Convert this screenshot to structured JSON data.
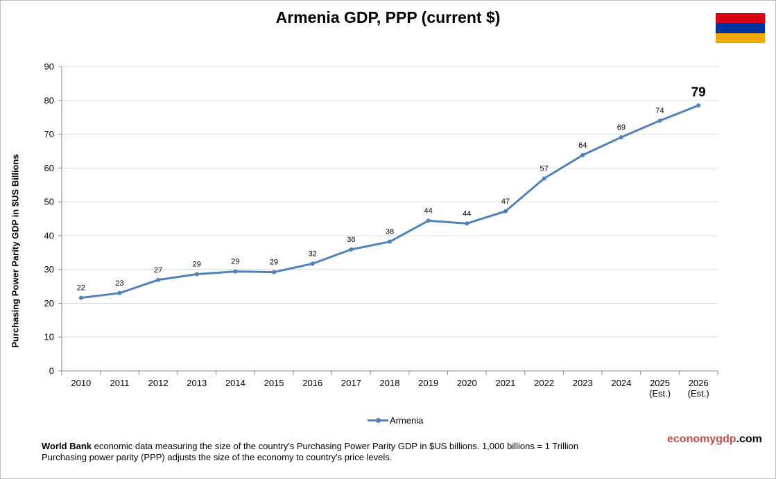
{
  "title": "Armenia  GDP, PPP (current $)",
  "flag_colors": [
    "#d90012",
    "#0033a0",
    "#f2a800"
  ],
  "brand": {
    "part1": "economygdp",
    "part2": ".com"
  },
  "footer": {
    "source": "World Bank",
    "line1_rest": " economic data measuring the size of the country's Purchasing Power Parity GDP in $US billions. 1,000 billions = 1 Trillion",
    "line2": "Purchasing power parity (PPP) adjusts the size of the economy to country's price levels."
  },
  "chart_data": {
    "type": "line",
    "ylabel": "Purchasing Power Parity GDP in $US Billions",
    "xlabel": "",
    "ylim": [
      0,
      90
    ],
    "yticks": [
      0,
      10,
      20,
      30,
      40,
      50,
      60,
      70,
      80,
      90
    ],
    "grid": true,
    "legend_position": "bottom",
    "color": "#4f81bd",
    "categories": [
      [
        "2010"
      ],
      [
        "2011"
      ],
      [
        "2012"
      ],
      [
        "2013"
      ],
      [
        "2014"
      ],
      [
        "2015"
      ],
      [
        "2016"
      ],
      [
        "2017"
      ],
      [
        "2018"
      ],
      [
        "2019"
      ],
      [
        "2020"
      ],
      [
        "2021"
      ],
      [
        "2022"
      ],
      [
        "2023"
      ],
      [
        "2024"
      ],
      [
        "2025",
        "(Est.)"
      ],
      [
        "2026",
        "(Est.)"
      ]
    ],
    "series": [
      {
        "name": "Armenia",
        "values": [
          21.6,
          23.0,
          26.9,
          28.6,
          29.4,
          29.2,
          31.7,
          35.9,
          38.2,
          44.4,
          43.6,
          47.2,
          56.9,
          63.8,
          69.1,
          74.0,
          78.5
        ],
        "labels": [
          "22",
          "23",
          "27",
          "29",
          "29",
          "29",
          "32",
          "36",
          "38",
          "44",
          "44",
          "47",
          "57",
          "64",
          "69",
          "74",
          "79"
        ]
      }
    ]
  }
}
